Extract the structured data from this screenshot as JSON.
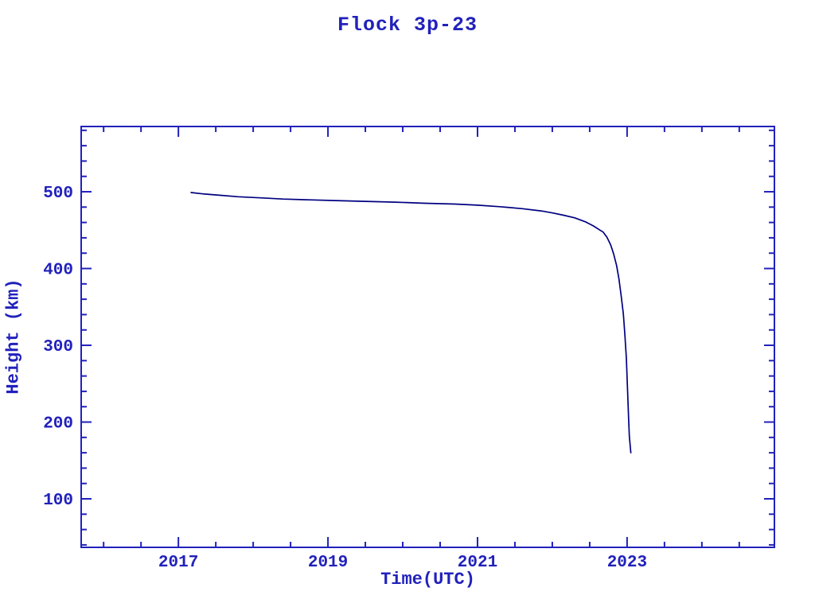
{
  "chart_data": {
    "type": "line",
    "title": "Flock 3p-23",
    "xlabel": "Time(UTC)",
    "ylabel": "Height (km)",
    "xlim": [
      2015.7,
      2024.97
    ],
    "ylim": [
      36.8,
      585
    ],
    "x_ticks_major": [
      2017,
      2019,
      2021,
      2023
    ],
    "x_tick_labels": [
      "2017",
      "2019",
      "2021",
      "2023"
    ],
    "x_tick_minor_step": 0.5,
    "y_ticks_major": [
      100,
      200,
      300,
      400,
      500
    ],
    "y_tick_labels": [
      "100",
      "200",
      "300",
      "400",
      "500"
    ],
    "y_tick_minor_step": 20,
    "grid": false,
    "legend": null,
    "colors": {
      "axis": "#2121bc",
      "text": "#2121bc",
      "line": "#000080",
      "background": "#ffffff"
    },
    "series": [
      {
        "name": "Flock 3p-23",
        "points": [
          [
            2017.17,
            499
          ],
          [
            2017.35,
            497
          ],
          [
            2017.55,
            495.5
          ],
          [
            2017.8,
            493.5
          ],
          [
            2018.1,
            492
          ],
          [
            2018.4,
            490.5
          ],
          [
            2018.75,
            489.5
          ],
          [
            2019.1,
            488.5
          ],
          [
            2019.5,
            487.5
          ],
          [
            2019.9,
            486.5
          ],
          [
            2020.3,
            485
          ],
          [
            2020.7,
            484
          ],
          [
            2021.0,
            482.5
          ],
          [
            2021.3,
            480.5
          ],
          [
            2021.6,
            478
          ],
          [
            2021.85,
            475
          ],
          [
            2022.0,
            472.5
          ],
          [
            2022.15,
            469.5
          ],
          [
            2022.3,
            466
          ],
          [
            2022.45,
            460.5
          ],
          [
            2022.55,
            455.5
          ],
          [
            2022.63,
            450.5
          ],
          [
            2022.68,
            447.5
          ],
          [
            2022.73,
            441
          ],
          [
            2022.78,
            431
          ],
          [
            2022.82,
            419
          ],
          [
            2022.86,
            404
          ],
          [
            2022.89,
            387
          ],
          [
            2022.92,
            365
          ],
          [
            2022.95,
            341
          ],
          [
            2022.97,
            314
          ],
          [
            2022.99,
            283
          ],
          [
            2023.0,
            258
          ],
          [
            2023.02,
            205
          ],
          [
            2023.03,
            182
          ],
          [
            2023.05,
            160
          ]
        ]
      }
    ]
  }
}
